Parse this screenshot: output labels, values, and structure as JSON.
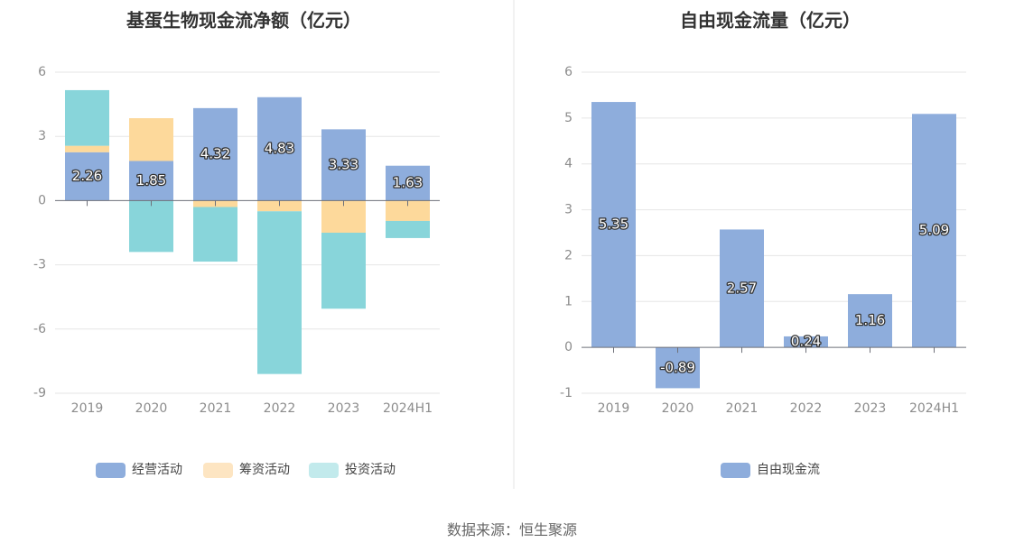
{
  "source_text": "数据来源：恒生聚源",
  "chart_data": [
    {
      "type": "bar",
      "stacked": true,
      "title": "基蛋生物现金流净额（亿元）",
      "categories": [
        "2019",
        "2020",
        "2021",
        "2022",
        "2023",
        "2024H1"
      ],
      "ylim": [
        -9,
        6
      ],
      "yticks": [
        6,
        3,
        0,
        -3,
        -6,
        -9
      ],
      "series": [
        {
          "name": "经营活动",
          "color": "#8eaddc",
          "values": [
            2.26,
            1.85,
            4.32,
            4.83,
            3.33,
            1.63
          ],
          "labels": [
            "2.26",
            "1.85",
            "4.32",
            "4.83",
            "3.33",
            "1.63"
          ]
        },
        {
          "name": "筹资活动",
          "color": "#fdd99b",
          "values": [
            0.3,
            2.0,
            -0.3,
            -0.5,
            -1.5,
            -0.95
          ]
        },
        {
          "name": "投资活动",
          "color": "#88d5da",
          "values": [
            2.6,
            -2.4,
            -2.55,
            -7.6,
            -3.55,
            -0.8
          ]
        }
      ],
      "legend_colors": [
        "#8eaddc",
        "#fde5c2",
        "#c2eaec"
      ],
      "legend_position": "bottom"
    },
    {
      "type": "bar",
      "title": "自由现金流量（亿元）",
      "categories": [
        "2019",
        "2020",
        "2021",
        "2022",
        "2023",
        "2024H1"
      ],
      "ylim": [
        -1,
        6
      ],
      "yticks": [
        6,
        5,
        4,
        3,
        2,
        1,
        0,
        -1
      ],
      "series": [
        {
          "name": "自由现金流",
          "color": "#8eaddc",
          "values": [
            5.35,
            -0.89,
            2.57,
            0.24,
            1.16,
            5.09
          ],
          "labels": [
            "5.35",
            "-0.89",
            "2.57",
            "0.24",
            "1.16",
            "5.09"
          ]
        }
      ],
      "legend_colors": [
        "#8eaddc"
      ],
      "legend_position": "bottom"
    }
  ]
}
